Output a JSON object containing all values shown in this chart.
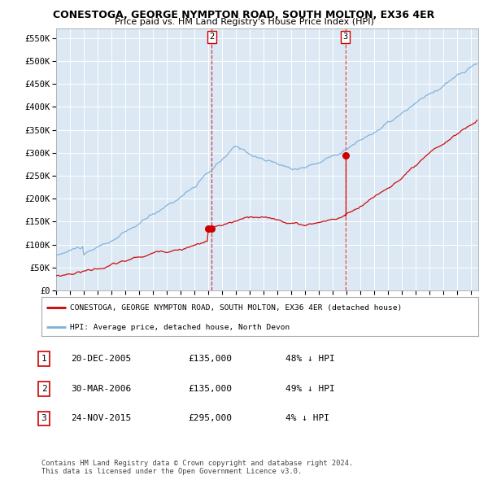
{
  "title": "CONESTOGA, GEORGE NYMPTON ROAD, SOUTH MOLTON, EX36 4ER",
  "subtitle": "Price paid vs. HM Land Registry's House Price Index (HPI)",
  "legend_line1": "CONESTOGA, GEORGE NYMPTON ROAD, SOUTH MOLTON, EX36 4ER (detached house)",
  "legend_line2": "HPI: Average price, detached house, North Devon",
  "transactions": [
    {
      "id": 1,
      "date": "20-DEC-2005",
      "price": 135000,
      "pct": "48%",
      "dir": "↓"
    },
    {
      "id": 2,
      "date": "30-MAR-2006",
      "price": 135000,
      "pct": "49%",
      "dir": "↓"
    },
    {
      "id": 3,
      "date": "24-NOV-2015",
      "price": 295000,
      "pct": "4%",
      "dir": "↓"
    }
  ],
  "transaction_dates_decimal": [
    2005.97,
    2006.25,
    2015.9
  ],
  "transaction_prices": [
    135000,
    135000,
    295000
  ],
  "vline_dates": [
    2006.25,
    2015.9
  ],
  "vline_labels": [
    "2",
    "3"
  ],
  "ylim": [
    0,
    570000
  ],
  "yticks": [
    0,
    50000,
    100000,
    150000,
    200000,
    250000,
    300000,
    350000,
    400000,
    450000,
    500000,
    550000
  ],
  "ytick_labels": [
    "£0",
    "£50K",
    "£100K",
    "£150K",
    "£200K",
    "£250K",
    "£300K",
    "£350K",
    "£400K",
    "£450K",
    "£500K",
    "£550K"
  ],
  "xlim_start": 1995.0,
  "xlim_end": 2025.5,
  "background_color": "#dce9f5",
  "grid_color": "#ffffff",
  "red_line_color": "#cc0000",
  "blue_line_color": "#7fb0d8",
  "vline_color": "#cc0000",
  "footer": "Contains HM Land Registry data © Crown copyright and database right 2024.\nThis data is licensed under the Open Government Licence v3.0.",
  "seed": 42
}
